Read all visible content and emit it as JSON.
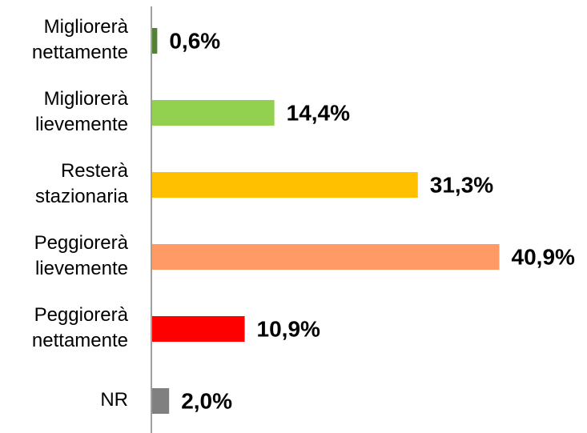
{
  "chart_data": {
    "type": "bar",
    "orientation": "horizontal",
    "categories": [
      "Migliorerà nettamente",
      "Migliorerà lievemente",
      "Resterà stazionaria",
      "Peggiorerà lievemente",
      "Peggiorerà nettamente",
      "NR"
    ],
    "values": [
      0.6,
      14.4,
      31.3,
      40.9,
      10.9,
      2.0
    ],
    "value_labels": [
      "0,6%",
      "14,4%",
      "31,3%",
      "40,9%",
      "10,9%",
      "2,0%"
    ],
    "colors": [
      "#548235",
      "#92d050",
      "#ffc000",
      "#ff9966",
      "#ff0000",
      "#808080"
    ]
  }
}
